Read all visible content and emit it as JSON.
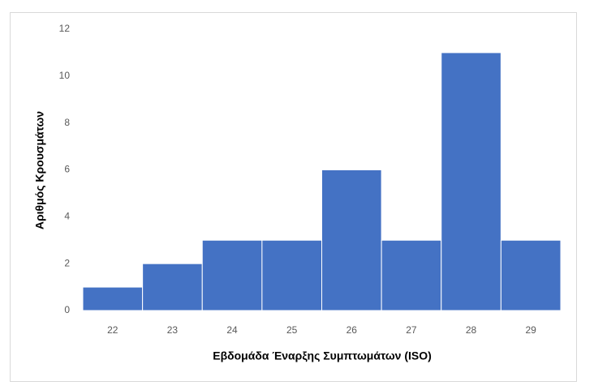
{
  "chart_data": {
    "type": "bar",
    "x_label": "Εβδομάδα Έναρξης Συμπτωμάτων (ISO)",
    "y_label": "Αριθμός Κρουσμάτων",
    "categories": [
      "22",
      "23",
      "24",
      "25",
      "26",
      "27",
      "28",
      "29"
    ],
    "values": [
      1,
      2,
      3,
      3,
      6,
      3,
      11,
      3
    ],
    "color": "#4472c4",
    "ylim": [
      0,
      12
    ],
    "yticks": [
      0,
      2,
      4,
      6,
      8,
      10,
      12
    ],
    "grid": false
  }
}
